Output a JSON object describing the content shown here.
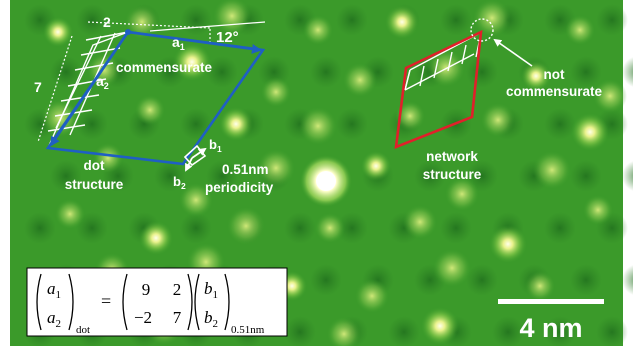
{
  "labels": {
    "lattice_a1": "a",
    "lattice_a1_sub": "1",
    "lattice_a2": "a",
    "lattice_a2_sub": "2",
    "angle": "12°",
    "count_top": "2",
    "count_left": "7",
    "commensurate": "commensurate",
    "not_commensurate_line1": "not",
    "not_commensurate_line2": "commensurate",
    "dot_structure_line1": "dot",
    "dot_structure_line2": "structure",
    "basis_b1": "b",
    "basis_b1_sub": "1",
    "basis_b2": "b",
    "basis_b2_sub": "2",
    "periodicity_line1": "0.51nm",
    "periodicity_line2": "periodicity",
    "network_structure_line1": "network",
    "network_structure_line2": "structure",
    "scale_bar": "4 nm"
  },
  "equation": {
    "lhs_top": "a",
    "lhs_top_sub": "1",
    "lhs_bottom": "a",
    "lhs_bottom_sub": "2",
    "lhs_subscript": "dot",
    "equals": "=",
    "m11": "9",
    "m12": "2",
    "m21": "−2",
    "m22": "7",
    "rhs_top": "b",
    "rhs_top_sub": "1",
    "rhs_bottom": "b",
    "rhs_bottom_sub": "2",
    "rhs_subscript": "0.51nm"
  },
  "colors": {
    "background_green": "#3f9f2c",
    "blob_yellow": "#f4f59a",
    "dot_cell": "#1f5fc4",
    "network_cell": "#e0202a"
  }
}
